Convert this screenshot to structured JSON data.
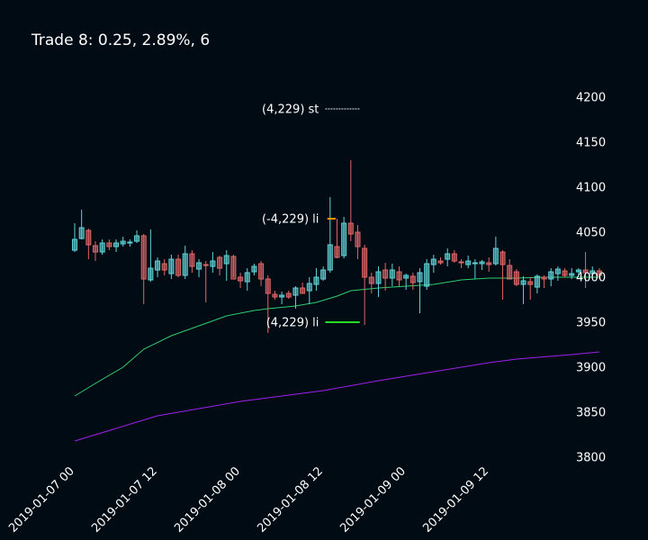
{
  "chart_data": {
    "type": "candlestick",
    "title": "Trade 8: 0.25, 2.89%, 6",
    "xlabel": "",
    "ylabel": "",
    "ylim": [
      3800,
      4200
    ],
    "yticks": [
      "3800",
      "3850",
      "3900",
      "3950",
      "4000",
      "4050",
      "4100",
      "4150",
      "4200"
    ],
    "xticks": [
      {
        "label": "2019-01-07 00",
        "t": 0
      },
      {
        "label": "2019-01-07 12",
        "t": 12
      },
      {
        "label": "2019-01-08 00",
        "t": 24
      },
      {
        "label": "2019-01-08 12",
        "t": 36
      },
      {
        "label": "2019-01-09 00",
        "t": 48
      },
      {
        "label": "2019-01-09 12",
        "t": 60
      }
    ],
    "bar_interval_hours": 1,
    "grid": false,
    "legend": false,
    "colors": {
      "up": "#5fd3d6",
      "down": "#e06666",
      "ma_fast": "#2ecc71",
      "ma_slow": "#a020f0",
      "stop": "#9aa0a6",
      "limit_entry": "#ff9900",
      "limit_target": "#22dd22"
    },
    "candles": [
      [
        0,
        4030,
        4060,
        4028,
        4042
      ],
      [
        1,
        4043,
        4075,
        4042,
        4055
      ],
      [
        2,
        4052,
        4054,
        4020,
        4036
      ],
      [
        3,
        4035,
        4040,
        4018,
        4028
      ],
      [
        4,
        4028,
        4042,
        4025,
        4038
      ],
      [
        5,
        4038,
        4042,
        4030,
        4034
      ],
      [
        6,
        4034,
        4042,
        4028,
        4038
      ],
      [
        7,
        4037,
        4045,
        4034,
        4040
      ],
      [
        8,
        4038,
        4042,
        4034,
        4039
      ],
      [
        9,
        4040,
        4052,
        4038,
        4046
      ],
      [
        10,
        4046,
        4048,
        3970,
        3998
      ],
      [
        11,
        3997,
        4053,
        3995,
        4010
      ],
      [
        12,
        4008,
        4022,
        4000,
        4018
      ],
      [
        13,
        4015,
        4020,
        4002,
        4008
      ],
      [
        14,
        4004,
        4025,
        3998,
        4020
      ],
      [
        15,
        4020,
        4025,
        4000,
        4002
      ],
      [
        16,
        4002,
        4035,
        3998,
        4026
      ],
      [
        17,
        4026,
        4030,
        4005,
        4012
      ],
      [
        18,
        4009,
        4020,
        4000,
        4016
      ],
      [
        19,
        4014,
        4018,
        3972,
        4013
      ],
      [
        20,
        4012,
        4028,
        4005,
        4018
      ],
      [
        21,
        4022,
        4024,
        4002,
        4010
      ],
      [
        22,
        4015,
        4030,
        3996,
        4024
      ],
      [
        23,
        4023,
        4025,
        4000,
        3998
      ],
      [
        24,
        4000,
        4005,
        3988,
        3996
      ],
      [
        25,
        3995,
        4010,
        3985,
        4005
      ],
      [
        26,
        4006,
        4015,
        4002,
        4012
      ],
      [
        27,
        4015,
        4018,
        3990,
        3998
      ],
      [
        28,
        3998,
        4002,
        3938,
        3982
      ],
      [
        29,
        3981,
        3985,
        3975,
        3978
      ],
      [
        30,
        3978,
        3984,
        3970,
        3980
      ],
      [
        31,
        3982,
        3985,
        3976,
        3978
      ],
      [
        32,
        3980,
        3990,
        3965,
        3988
      ],
      [
        33,
        3988,
        3994,
        3982,
        3982
      ],
      [
        34,
        3985,
        4000,
        3970,
        3993
      ],
      [
        35,
        3992,
        4010,
        3985,
        4000
      ],
      [
        36,
        3998,
        4012,
        3996,
        4008
      ],
      [
        37,
        4008,
        4089,
        4005,
        4036
      ],
      [
        38,
        4034,
        4065,
        4021,
        4022
      ],
      [
        39,
        4024,
        4067,
        4021,
        4060
      ],
      [
        40,
        4060,
        4130,
        4040,
        4048
      ],
      [
        41,
        4050,
        4058,
        4020,
        4034
      ],
      [
        42,
        4032,
        4036,
        3947,
        4000
      ],
      [
        43,
        4000,
        4005,
        3982,
        3993
      ],
      [
        44,
        3993,
        4012,
        3978,
        4006
      ],
      [
        45,
        4008,
        4016,
        3985,
        3999
      ],
      [
        46,
        3999,
        4015,
        3990,
        4008
      ],
      [
        47,
        4006,
        4012,
        3990,
        3997
      ],
      [
        48,
        3999,
        4004,
        3986,
        4002
      ],
      [
        49,
        4001,
        4005,
        3986,
        3994
      ],
      [
        50,
        3995,
        4010,
        3960,
        4005
      ],
      [
        51,
        3990,
        4020,
        3986,
        4015
      ],
      [
        52,
        4014,
        4025,
        4005,
        4020
      ],
      [
        53,
        4018,
        4022,
        4014,
        4016
      ],
      [
        54,
        4020,
        4032,
        4012,
        4026
      ],
      [
        55,
        4026,
        4030,
        4016,
        4018
      ],
      [
        56,
        4017,
        4020,
        4010,
        4016
      ],
      [
        57,
        4014,
        4024,
        4010,
        4018
      ],
      [
        58,
        4016,
        4020,
        3998,
        4016
      ],
      [
        59,
        4015,
        4019,
        4008,
        4017
      ],
      [
        60,
        4016,
        4022,
        4006,
        4014
      ],
      [
        61,
        4015,
        4045,
        4013,
        4032
      ],
      [
        62,
        4028,
        4030,
        3975,
        4014
      ],
      [
        63,
        4013,
        4020,
        3998,
        3998
      ],
      [
        64,
        4006,
        4009,
        3990,
        3992
      ],
      [
        65,
        3992,
        4001,
        3970,
        3996
      ],
      [
        66,
        3995,
        4000,
        3975,
        3992
      ],
      [
        67,
        3989,
        4003,
        3982,
        4001
      ],
      [
        68,
        4000,
        4002,
        3988,
        3998
      ],
      [
        69,
        3998,
        4010,
        3990,
        4006
      ],
      [
        70,
        4004,
        4012,
        3996,
        4009
      ],
      [
        71,
        4007,
        4010,
        4000,
        4002
      ],
      [
        72,
        4002,
        4010,
        3998,
        4004
      ],
      [
        73,
        4006,
        4010,
        4002,
        4008
      ],
      [
        74,
        4008,
        4028,
        3988,
        4005
      ],
      [
        75,
        4004,
        4012,
        4002,
        4007
      ],
      [
        76,
        4007,
        4010,
        3998,
        4002
      ]
    ],
    "series": [
      {
        "values": [
          [
            0,
            3868
          ],
          [
            3,
            3882
          ],
          [
            7,
            3900
          ],
          [
            10,
            3920
          ],
          [
            14,
            3935
          ],
          [
            18,
            3946
          ],
          [
            22,
            3957
          ],
          [
            26,
            3963
          ],
          [
            28,
            3965
          ],
          [
            32,
            3968
          ],
          [
            35,
            3972
          ],
          [
            38,
            3979
          ],
          [
            40,
            3985
          ],
          [
            44,
            3988
          ],
          [
            48,
            3990
          ],
          [
            52,
            3992
          ],
          [
            56,
            3997
          ],
          [
            60,
            3999
          ],
          [
            64,
            3999
          ],
          [
            68,
            4000
          ],
          [
            72,
            4000
          ],
          [
            76,
            4000
          ]
        ]
      },
      {
        "values": [
          [
            0,
            3818
          ],
          [
            12,
            3846
          ],
          [
            24,
            3862
          ],
          [
            36,
            3874
          ],
          [
            44,
            3885
          ],
          [
            52,
            3895
          ],
          [
            60,
            3905
          ],
          [
            64,
            3909
          ],
          [
            72,
            3914
          ],
          [
            76,
            3917
          ]
        ]
      }
    ],
    "annotations": [
      {
        "label": "(4,229) st",
        "t": 36.3,
        "price": 4187,
        "line_start": 36.3,
        "line_end": 41.3,
        "color_key": "stop",
        "dashed": true
      },
      {
        "label": "(-4,229) li",
        "t": 36.3,
        "price": 4065,
        "line_start": 36.6,
        "line_end": 37.8,
        "color_key": "limit_entry",
        "dashed": false
      },
      {
        "label": "(4,229) li",
        "t": 36.3,
        "price": 3950,
        "line_start": 36.3,
        "line_end": 41.3,
        "color_key": "limit_target",
        "dashed": false
      }
    ]
  }
}
